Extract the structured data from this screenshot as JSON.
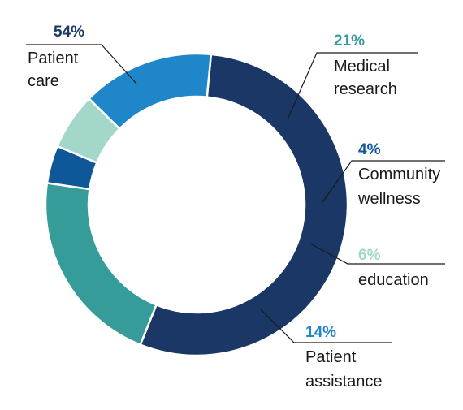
{
  "chart_data": {
    "type": "pie",
    "variant": "donut",
    "start_angle_deg": 275.5,
    "direction": "clockwise",
    "slices": [
      {
        "value": 54,
        "label": "54%",
        "name_lines": [
          "Patient",
          "care"
        ],
        "color": "#1b3765",
        "label_color": "#1b3765"
      },
      {
        "value": 21,
        "label": "21%",
        "name_lines": [
          "Medical",
          "research"
        ],
        "color": "#369c9a",
        "label_color": "#369c9a"
      },
      {
        "value": 4,
        "label": "4%",
        "name_lines": [
          "Community",
          "wellness"
        ],
        "color": "#0e5899",
        "label_color": "#0e5899"
      },
      {
        "value": 6,
        "label": "6%",
        "name_lines": [
          "education"
        ],
        "color": "#a2d7c9",
        "label_color": "#a2d7c9"
      },
      {
        "value": 14,
        "label": "14%",
        "name_lines": [
          "Patient",
          "assistance"
        ],
        "color": "#1f86c9",
        "label_color": "#1f86c9"
      }
    ]
  }
}
